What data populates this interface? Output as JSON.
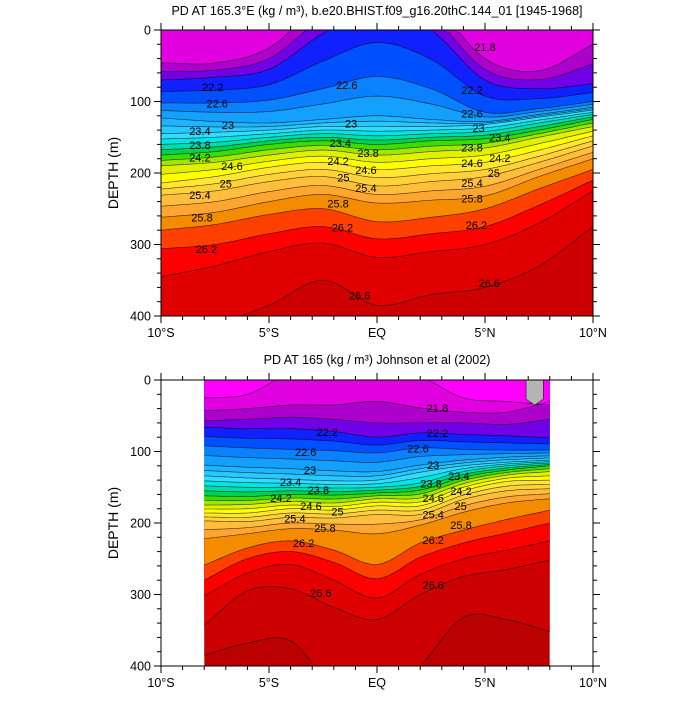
{
  "band_colors": {
    "21.4": "#ff00ff",
    "21.6": "#e000e0",
    "21.8": "#ae00cc",
    "22.0": "#7200e6",
    "22.2": "#1020ff",
    "22.4": "#0050ff",
    "22.6": "#0a82ff",
    "22.8": "#14a0ff",
    "23.0": "#1eb4ff",
    "23.2": "#28c8ff",
    "23.4": "#32dcff",
    "23.6": "#00e6e6",
    "23.8": "#00dcaa",
    "24.0": "#00d250",
    "24.2": "#3cdc00",
    "24.4": "#a0e600",
    "24.6": "#e1f000",
    "24.8": "#ffff00",
    "25.0": "#ffe632",
    "25.2": "#ffd23c",
    "25.4": "#ffbe3c",
    "25.6": "#ffa532",
    "25.8": "#f58c00",
    "26.0": "#ff4000",
    "26.2": "#ff0000",
    "26.4": "#e00000",
    "26.6": "#cc0000",
    "26.8": "#bb0000"
  },
  "missing_color": "#b4b4b4",
  "chart_data": [
    {
      "type": "contour",
      "title": "PD AT 165.3°E (kg / m³), b.e20.BHIST.f09_g16.20thC.144_01 [1945-1968]",
      "xlabel": "",
      "ylabel": "DEPTH (m)",
      "xlim": [
        -10,
        10
      ],
      "ylim": [
        400,
        0
      ],
      "x_ticks": [
        -10,
        -5,
        0,
        5,
        10
      ],
      "x_tick_labels": [
        "10°S",
        "5°S",
        "EQ",
        "5°N",
        "10°N"
      ],
      "y_ticks": [
        0,
        100,
        200,
        300,
        400
      ],
      "y_tick_labels": [
        "0",
        "100",
        "200",
        "300",
        "400"
      ],
      "data_lat_range": [
        -10,
        10
      ],
      "contour_interval": 0.2,
      "lats": [
        -10,
        -7.5,
        -5,
        -2.5,
        0,
        2.5,
        5,
        7.5,
        10
      ],
      "levels": [
        21.8,
        22.2,
        22.6,
        23.0,
        23.4,
        23.8,
        24.2,
        24.6,
        25.0,
        25.4,
        25.8,
        26.0,
        26.2,
        26.4,
        26.6
      ],
      "isopycnal_depths": [
        [
          46,
          46,
          25,
          -40,
          -80,
          -40,
          40,
          57,
          20
        ],
        [
          70,
          66,
          55,
          5,
          -30,
          0,
          70,
          82,
          75
        ],
        [
          102,
          102,
          98,
          82,
          65,
          82,
          115,
          110,
          100
        ],
        [
          123,
          128,
          130,
          125,
          120,
          125,
          128,
          118,
          108
        ],
        [
          145,
          143,
          140,
          135,
          135,
          135,
          132,
          122,
          112
        ],
        [
          160,
          157,
          150,
          145,
          148,
          145,
          142,
          130,
          118
        ],
        [
          175,
          170,
          160,
          155,
          160,
          155,
          152,
          140,
          125
        ],
        [
          190,
          185,
          175,
          168,
          175,
          170,
          165,
          150,
          135
        ],
        [
          214,
          205,
          192,
          185,
          195,
          190,
          185,
          168,
          148
        ],
        [
          231,
          225,
          212,
          205,
          218,
          212,
          205,
          185,
          162
        ],
        [
          262,
          255,
          240,
          230,
          242,
          238,
          232,
          205,
          180
        ],
        [
          280,
          272,
          258,
          250,
          268,
          262,
          250,
          222,
          195
        ],
        [
          306,
          300,
          285,
          275,
          292,
          285,
          275,
          245,
          210
        ],
        [
          345,
          330,
          310,
          298,
          318,
          310,
          300,
          270,
          225
        ],
        [
          420,
          410,
          385,
          350,
          385,
          370,
          360,
          330,
          275
        ]
      ],
      "missing_regions": [],
      "contour_labels": [
        {
          "text": "21.8",
          "lat": 5.0,
          "depth": 24
        },
        {
          "text": "22.2",
          "lat": -7.6,
          "depth": 80
        },
        {
          "text": "22.2",
          "lat": 4.4,
          "depth": 84
        },
        {
          "text": "22.6",
          "lat": -7.4,
          "depth": 103
        },
        {
          "text": "22.6",
          "lat": -1.4,
          "depth": 77
        },
        {
          "text": "22.6",
          "lat": 4.4,
          "depth": 117
        },
        {
          "text": "23",
          "lat": -6.9,
          "depth": 133
        },
        {
          "text": "23",
          "lat": -1.2,
          "depth": 131
        },
        {
          "text": "23",
          "lat": 4.7,
          "depth": 137
        },
        {
          "text": "23.4",
          "lat": -8.2,
          "depth": 141
        },
        {
          "text": "23.4",
          "lat": -1.7,
          "depth": 158
        },
        {
          "text": "23.4",
          "lat": 4.4,
          "depth": 150
        },
        {
          "text": "23.8",
          "lat": -8.2,
          "depth": 161
        },
        {
          "text": "23.8",
          "lat": -1.7,
          "depth": 172
        },
        {
          "text": "23.8",
          "lat": 4.4,
          "depth": 164
        },
        {
          "text": "24.2",
          "lat": -8.2,
          "depth": 178
        },
        {
          "text": "24.2",
          "lat": -1.8,
          "depth": 183
        },
        {
          "text": "24.2",
          "lat": 4.4,
          "depth": 179
        },
        {
          "text": "24.6",
          "lat": -8.0,
          "depth": 190
        },
        {
          "text": "24.6",
          "lat": -1.8,
          "depth": 196
        },
        {
          "text": "24.6",
          "lat": 4.4,
          "depth": 186
        },
        {
          "text": "25",
          "lat": -7.0,
          "depth": 215
        },
        {
          "text": "25",
          "lat": -1.2,
          "depth": 206
        },
        {
          "text": "25",
          "lat": 4.7,
          "depth": 200
        },
        {
          "text": "25.4",
          "lat": -8.2,
          "depth": 231
        },
        {
          "text": "25.4",
          "lat": -1.8,
          "depth": 221
        },
        {
          "text": "25.4",
          "lat": 4.4,
          "depth": 214
        },
        {
          "text": "25.8",
          "lat": -8.1,
          "depth": 262
        },
        {
          "text": "25.8",
          "lat": -1.8,
          "depth": 243
        },
        {
          "text": "25.8",
          "lat": 4.4,
          "depth": 236
        },
        {
          "text": "26.2",
          "lat": -7.9,
          "depth": 306
        },
        {
          "text": "26.2",
          "lat": -1.6,
          "depth": 276
        },
        {
          "text": "26.2",
          "lat": 4.6,
          "depth": 273
        },
        {
          "text": "26.6",
          "lat": -0.8,
          "depth": 371
        },
        {
          "text": "26.6",
          "lat": 5.2,
          "depth": 354
        }
      ]
    },
    {
      "type": "contour",
      "title": "PD AT 165 (kg / m³) Johnson et al (2002)",
      "xlabel": "",
      "ylabel": "DEPTH (m)",
      "xlim": [
        -10,
        10
      ],
      "ylim": [
        400,
        0
      ],
      "x_ticks": [
        -10,
        -5,
        0,
        5,
        10
      ],
      "x_tick_labels": [
        "10°S",
        "5°S",
        "EQ",
        "5°N",
        "10°N"
      ],
      "y_ticks": [
        0,
        100,
        200,
        300,
        400
      ],
      "y_tick_labels": [
        "0",
        "100",
        "200",
        "300",
        "400"
      ],
      "data_lat_range": [
        -8,
        8
      ],
      "contour_interval": 0.2,
      "lats": [
        -8,
        -6,
        -4,
        -2,
        0,
        2,
        4,
        6,
        8
      ],
      "levels": [
        21.6,
        21.8,
        22.0,
        22.2,
        22.6,
        23.0,
        23.4,
        23.8,
        24.2,
        24.6,
        25.0,
        25.4,
        25.8,
        26.0,
        26.2,
        26.4,
        26.6,
        26.8
      ],
      "isopycnal_depths": [
        [
          25,
          20,
          -10,
          -20,
          -20,
          -5,
          25,
          30,
          35
        ],
        [
          43,
          40,
          35,
          35,
          30,
          39,
          45,
          45,
          30
        ],
        [
          57,
          55,
          52,
          55,
          60,
          60,
          60,
          62,
          55
        ],
        [
          66,
          68,
          68,
          72,
          80,
          74,
          76,
          78,
          81
        ],
        [
          92,
          95,
          97,
          99,
          102,
          95,
          97,
          98,
          98
        ],
        [
          119,
          122,
          124,
          127,
          128,
          119,
          112,
          108,
          106
        ],
        [
          134,
          137,
          139,
          141,
          140,
          129,
          120,
          115,
          112
        ],
        [
          148,
          150,
          150,
          151,
          150,
          144,
          128,
          120,
          116
        ],
        [
          162,
          163,
          160,
          161,
          158,
          154,
          136,
          126,
          120
        ],
        [
          175,
          174,
          170,
          172,
          166,
          165,
          145,
          133,
          128
        ],
        [
          186,
          186,
          180,
          182,
          176,
          176,
          155,
          142,
          140
        ],
        [
          197,
          198,
          192,
          193,
          188,
          188,
          167,
          155,
          152
        ],
        [
          222,
          215,
          208,
          210,
          215,
          203,
          185,
          172,
          166
        ],
        [
          259,
          235,
          225,
          238,
          258,
          228,
          210,
          195,
          182
        ],
        [
          280,
          250,
          240,
          255,
          278,
          248,
          228,
          214,
          200
        ],
        [
          302,
          270,
          258,
          280,
          305,
          272,
          250,
          238,
          225
        ],
        [
          343,
          295,
          292,
          318,
          335,
          300,
          275,
          265,
          252
        ],
        [
          385,
          368,
          365,
          430,
          450,
          400,
          332,
          335,
          352
        ]
      ],
      "missing_regions": [
        {
          "lat": [
            6.9,
            7.7
          ],
          "depth": [
            0,
            35
          ]
        }
      ],
      "contour_labels": [
        {
          "text": "21.8",
          "lat": 2.8,
          "depth": 39
        },
        {
          "text": "22.2",
          "lat": -2.3,
          "depth": 73
        },
        {
          "text": "22.2",
          "lat": 2.8,
          "depth": 74
        },
        {
          "text": "22.6",
          "lat": -3.3,
          "depth": 101
        },
        {
          "text": "22.6",
          "lat": 1.9,
          "depth": 96
        },
        {
          "text": "23",
          "lat": -3.1,
          "depth": 126
        },
        {
          "text": "23",
          "lat": 2.6,
          "depth": 119
        },
        {
          "text": "23.4",
          "lat": -4.0,
          "depth": 143
        },
        {
          "text": "23.4",
          "lat": 2.5,
          "depth": 134
        },
        {
          "text": "23.8",
          "lat": -4.0,
          "depth": 154
        },
        {
          "text": "23.8",
          "lat": 2.5,
          "depth": 145
        },
        {
          "text": "24.2",
          "lat": -3.8,
          "depth": 165
        },
        {
          "text": "24.2",
          "lat": 2.6,
          "depth": 155
        },
        {
          "text": "24.6",
          "lat": -3.7,
          "depth": 176
        },
        {
          "text": "24.6",
          "lat": 2.6,
          "depth": 165
        },
        {
          "text": "25",
          "lat": -2.9,
          "depth": 184
        },
        {
          "text": "25",
          "lat": 2.8,
          "depth": 176
        },
        {
          "text": "25.4",
          "lat": -3.8,
          "depth": 194
        },
        {
          "text": "25.4",
          "lat": 2.6,
          "depth": 188
        },
        {
          "text": "25.8",
          "lat": -3.7,
          "depth": 207
        },
        {
          "text": "25.8",
          "lat": 2.6,
          "depth": 203
        },
        {
          "text": "26.2",
          "lat": -3.4,
          "depth": 228
        },
        {
          "text": "26.2",
          "lat": 2.6,
          "depth": 224
        },
        {
          "text": "26.6",
          "lat": -2.6,
          "depth": 298
        },
        {
          "text": "26.6",
          "lat": 2.6,
          "depth": 287
        }
      ]
    }
  ]
}
